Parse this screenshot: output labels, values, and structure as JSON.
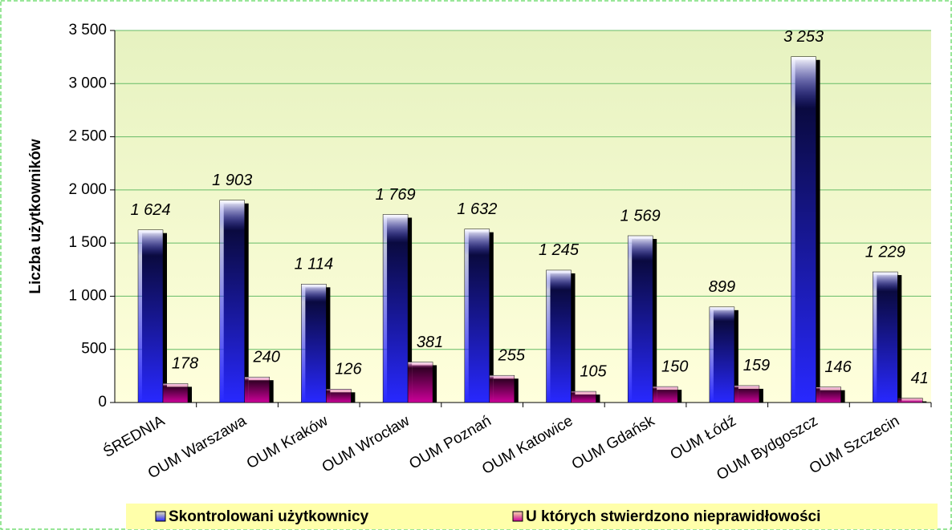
{
  "chart_data": {
    "type": "bar",
    "y_label": "Liczba użytkowników",
    "categories": [
      "ŚREDNIA",
      "OUM Warszawa",
      "OUM Kraków",
      "OUM Wrocław",
      "OUM Poznań",
      "OUM Katowice",
      "OUM Gdańsk",
      "OUM Łódź",
      "OUM Bydgoszcz",
      "OUM Szczecin"
    ],
    "series": [
      {
        "name": "Skontrolowani użytkownicy",
        "color": "#2828ff",
        "values": [
          1624,
          1903,
          1114,
          1769,
          1632,
          1245,
          1569,
          899,
          3253,
          1229
        ],
        "value_labels": [
          "1 624",
          "1 903",
          "1 114",
          "1 769",
          "1 632",
          "1 245",
          "1 569",
          "899",
          "3 253",
          "1 229"
        ]
      },
      {
        "name": "U których stwierdzono nieprawidłowości",
        "color": "#cc0099",
        "values": [
          178,
          240,
          126,
          381,
          255,
          105,
          150,
          159,
          146,
          41
        ]
      }
    ],
    "ylim": [
      0,
      3500
    ],
    "yticks": [
      0,
      500,
      {
        "value": 1000,
        "label": "1 000"
      },
      {
        "value": 1500,
        "label": "1 500"
      },
      {
        "value": 2000,
        "label": "2 000"
      },
      {
        "value": 2500,
        "label": "2 500"
      },
      {
        "value": 3000,
        "label": "3 000"
      },
      {
        "value": 3500,
        "label": "3 500"
      }
    ],
    "grid": true,
    "legend": "bottom"
  }
}
